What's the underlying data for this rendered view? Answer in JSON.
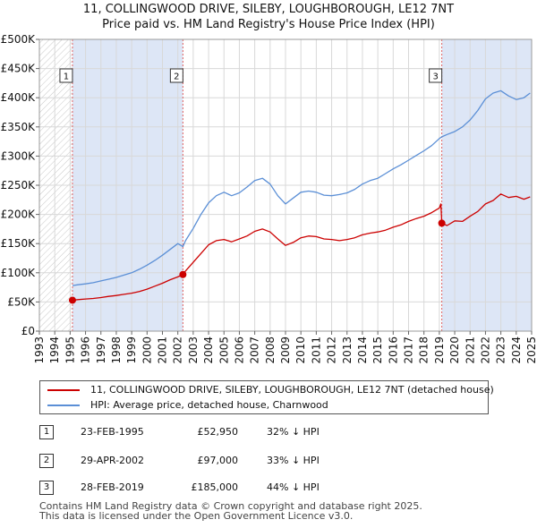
{
  "title_line1": "11, COLLINGWOOD DRIVE, SILEBY, LOUGHBOROUGH, LE12 7NT",
  "title_line2": "Price paid vs. HM Land Registry's House Price Index (HPI)",
  "colors": {
    "property": "#cc0000",
    "hpi": "#5b8fd6",
    "shade": "#dde6f6",
    "grid": "#d8d8d8",
    "marker_line": "#e06060"
  },
  "chart_data": {
    "type": "line",
    "xlim": [
      1993,
      2025
    ],
    "ylim": [
      0,
      500000
    ],
    "yticks": [
      {
        "value": 0,
        "label": "£0"
      },
      {
        "value": 50000,
        "label": "£50K"
      },
      {
        "value": 100000,
        "label": "£100K"
      },
      {
        "value": 150000,
        "label": "£150K"
      },
      {
        "value": 200000,
        "label": "£200K"
      },
      {
        "value": 250000,
        "label": "£250K"
      },
      {
        "value": 300000,
        "label": "£300K"
      },
      {
        "value": 350000,
        "label": "£350K"
      },
      {
        "value": 400000,
        "label": "£400K"
      },
      {
        "value": 450000,
        "label": "£450K"
      },
      {
        "value": 500000,
        "label": "£500K"
      }
    ],
    "xticks": [
      "1993",
      "1994",
      "1995",
      "1996",
      "1997",
      "1998",
      "1999",
      "2000",
      "2001",
      "2002",
      "2003",
      "2004",
      "2005",
      "2006",
      "2007",
      "2008",
      "2009",
      "2010",
      "2011",
      "2012",
      "2013",
      "2014",
      "2015",
      "2016",
      "2017",
      "2018",
      "2019",
      "2020",
      "2021",
      "2022",
      "2023",
      "2024",
      "2025"
    ],
    "hatch_before": 1995.15,
    "shaded_ranges": [
      [
        1995.15,
        2002.33
      ],
      [
        2019.16,
        2025
      ]
    ],
    "series": [
      {
        "name": "11, COLLINGWOOD DRIVE, SILEBY, LOUGHBOROUGH, LE12 7NT (detached house)",
        "color": "#cc0000",
        "x": [
          1995.15,
          1995.5,
          1996,
          1996.5,
          1997,
          1997.5,
          1998,
          1998.5,
          1999,
          1999.5,
          2000,
          2000.5,
          2001,
          2001.5,
          2002,
          2002.33,
          2002.5,
          2003,
          2003.5,
          2004,
          2004.5,
          2005,
          2005.5,
          2006,
          2006.5,
          2007,
          2007.5,
          2008,
          2008.5,
          2009,
          2009.5,
          2010,
          2010.5,
          2011,
          2011.5,
          2012,
          2012.5,
          2013,
          2013.5,
          2014,
          2014.5,
          2015,
          2015.5,
          2016,
          2016.5,
          2017,
          2017.5,
          2018,
          2018.5,
          2019.0,
          2019.1,
          2019.16,
          2019.5,
          2020,
          2020.5,
          2021,
          2021.5,
          2022,
          2022.5,
          2023,
          2023.5,
          2024,
          2024.5,
          2024.9
        ],
        "values": [
          52950,
          54000,
          55000,
          56000,
          57500,
          59500,
          61000,
          63000,
          65000,
          68000,
          72000,
          77000,
          82000,
          88000,
          93000,
          97000,
          103000,
          118000,
          133000,
          148000,
          155000,
          157000,
          153000,
          158000,
          163000,
          171000,
          175000,
          170000,
          158000,
          147000,
          152000,
          160000,
          163000,
          162000,
          158000,
          157000,
          155000,
          157000,
          160000,
          165000,
          168000,
          170000,
          173000,
          178000,
          182000,
          188000,
          193000,
          197000,
          203000,
          211000,
          218000,
          185000,
          181000,
          189000,
          188000,
          197000,
          205000,
          218000,
          224000,
          235000,
          229000,
          231000,
          226000,
          230000
        ]
      },
      {
        "name": "HPI: Average price, detached house, Charnwood",
        "color": "#5b8fd6",
        "x": [
          1995.15,
          1995.5,
          1996,
          1996.5,
          1997,
          1997.5,
          1998,
          1998.5,
          1999,
          1999.5,
          2000,
          2000.5,
          2001,
          2001.5,
          2002,
          2002.33,
          2002.5,
          2003,
          2003.5,
          2004,
          2004.5,
          2005,
          2005.5,
          2006,
          2006.5,
          2007,
          2007.5,
          2008,
          2008.5,
          2009,
          2009.5,
          2010,
          2010.5,
          2011,
          2011.5,
          2012,
          2012.5,
          2013,
          2013.5,
          2014,
          2014.5,
          2015,
          2015.5,
          2016,
          2016.5,
          2017,
          2017.5,
          2018,
          2018.5,
          2019.0,
          2019.16,
          2019.5,
          2020,
          2020.5,
          2021,
          2021.5,
          2022,
          2022.5,
          2023,
          2023.5,
          2024,
          2024.5,
          2024.9
        ],
        "values": [
          78000,
          79500,
          81000,
          83000,
          86000,
          89000,
          92000,
          96000,
          100000,
          106000,
          113000,
          121000,
          130000,
          140000,
          150000,
          145000,
          155000,
          176000,
          200000,
          220000,
          232000,
          238000,
          232000,
          237000,
          247000,
          258000,
          262000,
          252000,
          232000,
          218000,
          228000,
          238000,
          240000,
          238000,
          233000,
          232000,
          234000,
          237000,
          243000,
          252000,
          258000,
          262000,
          270000,
          278000,
          285000,
          293000,
          301000,
          309000,
          318000,
          330000,
          333000,
          337000,
          342000,
          350000,
          362000,
          378000,
          398000,
          408000,
          412000,
          403000,
          397000,
          400000,
          408000
        ]
      }
    ],
    "sale_markers": [
      {
        "label": "1",
        "x": 1995.15,
        "y": 52950
      },
      {
        "label": "2",
        "x": 2002.33,
        "y": 97000
      },
      {
        "label": "3",
        "x": 2019.16,
        "y": 185000
      }
    ]
  },
  "legend": {
    "property_label": "11, COLLINGWOOD DRIVE, SILEBY, LOUGHBOROUGH, LE12 7NT (detached house)",
    "hpi_label": "HPI: Average price, detached house, Charnwood"
  },
  "sales": [
    {
      "num": "1",
      "date": "23-FEB-1995",
      "price": "£52,950",
      "hpi": "32% ↓ HPI"
    },
    {
      "num": "2",
      "date": "29-APR-2002",
      "price": "£97,000",
      "hpi": "33% ↓ HPI"
    },
    {
      "num": "3",
      "date": "28-FEB-2019",
      "price": "£185,000",
      "hpi": "44% ↓ HPI"
    }
  ],
  "footer": {
    "line1": "Contains HM Land Registry data © Crown copyright and database right 2025.",
    "line2": "This data is licensed under the Open Government Licence v3.0."
  }
}
